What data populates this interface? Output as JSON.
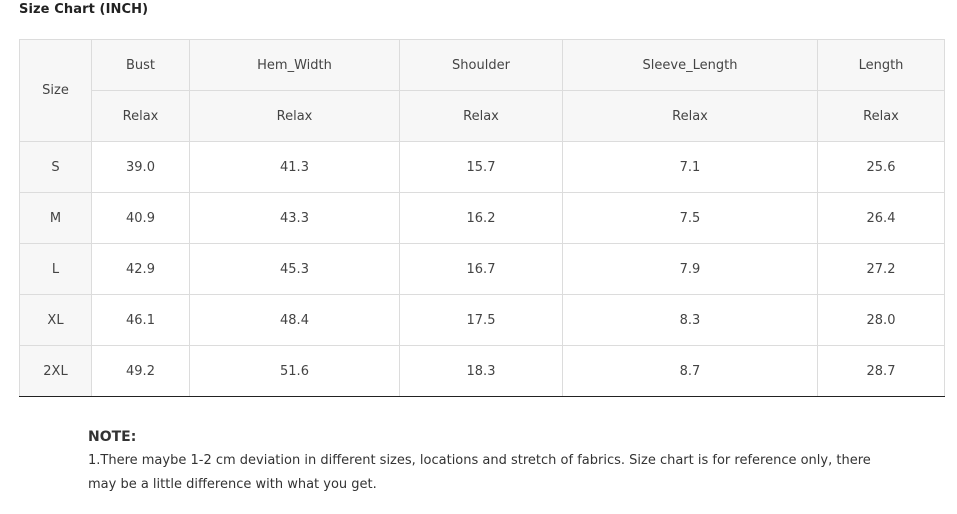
{
  "title": "Size Chart (INCH)",
  "table": {
    "size_header": "Size",
    "columns": [
      "Bust",
      "Hem_Width",
      "Shoulder",
      "Sleeve_Length",
      "Length"
    ],
    "sub_header": [
      "Relax",
      "Relax",
      "Relax",
      "Relax",
      "Relax"
    ],
    "rows": [
      {
        "size": "S",
        "values": [
          "39.0",
          "41.3",
          "15.7",
          "7.1",
          "25.6"
        ]
      },
      {
        "size": "M",
        "values": [
          "40.9",
          "43.3",
          "16.2",
          "7.5",
          "26.4"
        ]
      },
      {
        "size": "L",
        "values": [
          "42.9",
          "45.3",
          "16.7",
          "7.9",
          "27.2"
        ]
      },
      {
        "size": "XL",
        "values": [
          "46.1",
          "48.4",
          "17.5",
          "8.3",
          "28.0"
        ]
      },
      {
        "size": "2XL",
        "values": [
          "49.2",
          "51.6",
          "18.3",
          "8.7",
          "28.7"
        ]
      }
    ]
  },
  "note": {
    "title": "NOTE:",
    "text": "1.There maybe 1-2 cm deviation in different sizes, locations and stretch of fabrics. Size chart is for reference only, there may be a little difference with what you get."
  }
}
